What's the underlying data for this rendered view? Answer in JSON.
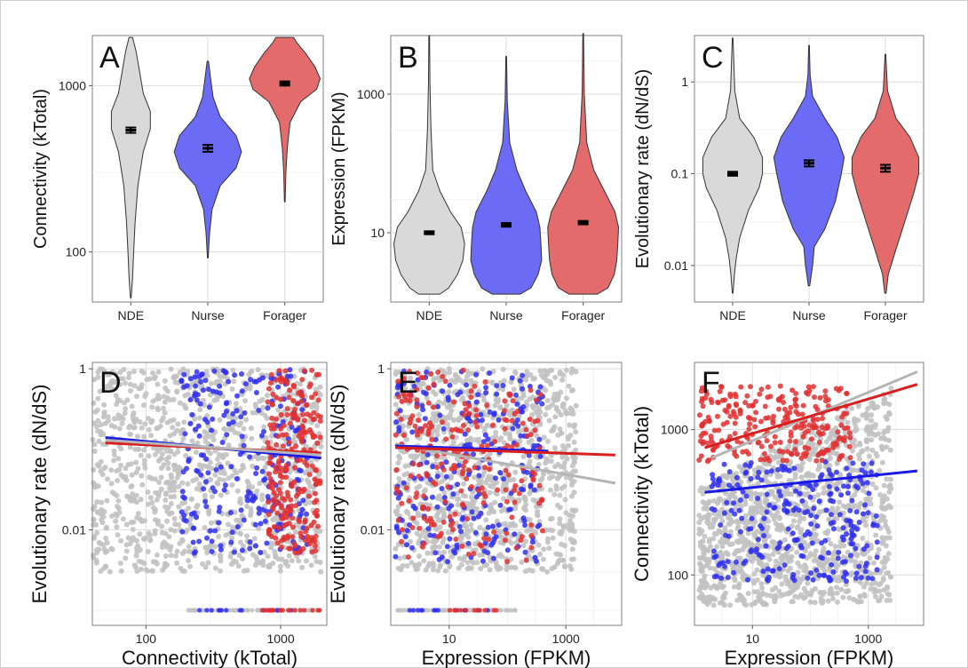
{
  "figure": {
    "border_color": "#cfcfcf"
  },
  "colors": {
    "NDE": "#d9d9d9",
    "Nurse": "#6b6bf5",
    "Forager": "#e36b6b",
    "points_gray": "#c2c2c2",
    "points_blue": "#2f2ff0",
    "points_red": "#e03030",
    "line_gray": "#b5b5b5",
    "line_blue": "#1a1ae6",
    "line_red": "#d81e1e"
  },
  "chart_data": [
    {
      "panel": "A",
      "type": "violin",
      "ylabel": "Connectivity (kTotal)",
      "yscale": "log",
      "ylim": [
        50,
        2000
      ],
      "yticks": [
        100,
        1000
      ],
      "yticklabels": [
        "100",
        "1000"
      ],
      "categories": [
        "NDE",
        "Nurse",
        "Forager"
      ],
      "violins": [
        {
          "name": "NDE",
          "mean": 540,
          "err": 20,
          "min": 53,
          "max": 1950,
          "shape": [
            [
              53,
              0.01
            ],
            [
              70,
              0.05
            ],
            [
              100,
              0.08
            ],
            [
              150,
              0.12
            ],
            [
              250,
              0.2
            ],
            [
              400,
              0.35
            ],
            [
              550,
              0.55
            ],
            [
              700,
              0.55
            ],
            [
              900,
              0.35
            ],
            [
              1200,
              0.25
            ],
            [
              1600,
              0.15
            ],
            [
              1950,
              0.05
            ]
          ]
        },
        {
          "name": "Nurse",
          "mean": 420,
          "err": 20,
          "min": 92,
          "max": 1400,
          "shape": [
            [
              92,
              0.01
            ],
            [
              130,
              0.05
            ],
            [
              180,
              0.12
            ],
            [
              250,
              0.35
            ],
            [
              320,
              0.8
            ],
            [
              400,
              0.95
            ],
            [
              500,
              0.8
            ],
            [
              650,
              0.35
            ],
            [
              850,
              0.15
            ],
            [
              1100,
              0.08
            ],
            [
              1400,
              0.02
            ]
          ]
        },
        {
          "name": "Forager",
          "mean": 1030,
          "err": 30,
          "min": 200,
          "max": 1950,
          "shape": [
            [
              200,
              0.01
            ],
            [
              300,
              0.03
            ],
            [
              420,
              0.07
            ],
            [
              600,
              0.15
            ],
            [
              800,
              0.45
            ],
            [
              950,
              0.9
            ],
            [
              1100,
              1.0
            ],
            [
              1300,
              0.85
            ],
            [
              1550,
              0.6
            ],
            [
              1800,
              0.35
            ],
            [
              1950,
              0.25
            ]
          ]
        }
      ]
    },
    {
      "panel": "B",
      "type": "violin",
      "ylabel": "Expression (FPKM)",
      "yscale": "log",
      "ylim": [
        1,
        7000
      ],
      "yticks": [
        10,
        1000
      ],
      "yticklabels": [
        "10",
        "1000"
      ],
      "categories": [
        "NDE",
        "Nurse",
        "Forager"
      ],
      "violins": [
        {
          "name": "NDE",
          "mean": 10,
          "err": 0.5,
          "min": 1.3,
          "max": 7000,
          "shape": [
            [
              1.3,
              0.3
            ],
            [
              1.6,
              0.55
            ],
            [
              2.5,
              0.8
            ],
            [
              4,
              0.95
            ],
            [
              7,
              1.0
            ],
            [
              12,
              0.9
            ],
            [
              20,
              0.6
            ],
            [
              40,
              0.3
            ],
            [
              80,
              0.1
            ],
            [
              300,
              0.05
            ],
            [
              1500,
              0.02
            ],
            [
              7000,
              0.01
            ]
          ]
        },
        {
          "name": "Nurse",
          "mean": 13,
          "err": 0.8,
          "min": 1.3,
          "max": 3500,
          "shape": [
            [
              1.3,
              0.4
            ],
            [
              1.6,
              0.7
            ],
            [
              2.5,
              0.9
            ],
            [
              4,
              1.0
            ],
            [
              7,
              0.98
            ],
            [
              12,
              0.95
            ],
            [
              20,
              0.85
            ],
            [
              40,
              0.55
            ],
            [
              80,
              0.3
            ],
            [
              200,
              0.1
            ],
            [
              800,
              0.03
            ],
            [
              3500,
              0.01
            ]
          ]
        },
        {
          "name": "Forager",
          "mean": 14,
          "err": 0.8,
          "min": 1.3,
          "max": 7500,
          "shape": [
            [
              1.3,
              0.4
            ],
            [
              1.6,
              0.7
            ],
            [
              2.5,
              0.88
            ],
            [
              4,
              0.95
            ],
            [
              7,
              0.98
            ],
            [
              12,
              1.0
            ],
            [
              20,
              0.9
            ],
            [
              40,
              0.6
            ],
            [
              80,
              0.3
            ],
            [
              200,
              0.1
            ],
            [
              1000,
              0.03
            ],
            [
              7500,
              0.01
            ]
          ]
        }
      ]
    },
    {
      "panel": "C",
      "type": "violin",
      "ylabel": "Evolutionary rate (dN/dS)",
      "yscale": "log",
      "ylim": [
        0.004,
        3.2
      ],
      "yticks": [
        0.01,
        0.1,
        1
      ],
      "yticklabels": [
        "0.01",
        "0.1",
        "1"
      ],
      "categories": [
        "NDE",
        "Nurse",
        "Forager"
      ],
      "violins": [
        {
          "name": "NDE",
          "mean": 0.1,
          "err": 0.005,
          "min": 0.005,
          "max": 3,
          "shape": [
            [
              0.005,
              0.01
            ],
            [
              0.008,
              0.05
            ],
            [
              0.012,
              0.1
            ],
            [
              0.02,
              0.2
            ],
            [
              0.04,
              0.45
            ],
            [
              0.07,
              0.75
            ],
            [
              0.1,
              0.85
            ],
            [
              0.15,
              0.85
            ],
            [
              0.25,
              0.6
            ],
            [
              0.4,
              0.2
            ],
            [
              0.8,
              0.06
            ],
            [
              3,
              0.01
            ]
          ]
        },
        {
          "name": "Nurse",
          "mean": 0.13,
          "err": 0.01,
          "min": 0.006,
          "max": 2.5,
          "shape": [
            [
              0.006,
              0.02
            ],
            [
              0.01,
              0.1
            ],
            [
              0.016,
              0.15
            ],
            [
              0.025,
              0.45
            ],
            [
              0.05,
              0.75
            ],
            [
              0.1,
              0.92
            ],
            [
              0.15,
              1.0
            ],
            [
              0.25,
              0.8
            ],
            [
              0.4,
              0.45
            ],
            [
              0.7,
              0.1
            ],
            [
              1.2,
              0.03
            ],
            [
              2.5,
              0.01
            ]
          ]
        },
        {
          "name": "Forager",
          "mean": 0.115,
          "err": 0.01,
          "min": 0.005,
          "max": 2,
          "shape": [
            [
              0.005,
              0.02
            ],
            [
              0.008,
              0.08
            ],
            [
              0.015,
              0.3
            ],
            [
              0.03,
              0.55
            ],
            [
              0.06,
              0.8
            ],
            [
              0.1,
              0.95
            ],
            [
              0.15,
              0.95
            ],
            [
              0.25,
              0.7
            ],
            [
              0.4,
              0.3
            ],
            [
              0.8,
              0.06
            ],
            [
              2,
              0.01
            ]
          ]
        }
      ]
    },
    {
      "panel": "D",
      "type": "scatter",
      "xlabel": "Connectivity (kTotal)",
      "ylabel": "Evolutionary rate (dN/dS)",
      "xscale": "log",
      "yscale": "log",
      "xlim": [
        40,
        2200
      ],
      "ylim": [
        0.00065,
        1.2
      ],
      "xticks": [
        100,
        1000
      ],
      "xticklabels": [
        "100",
        "1000"
      ],
      "yticks": [
        0.01,
        1
      ],
      "yticklabels": [
        "0.01",
        "1"
      ],
      "floor_y": 0.001,
      "clouds": {
        "gray": {
          "n": 1100,
          "x": [
            40,
            2000
          ],
          "y": [
            0.003,
            1.0
          ],
          "floor_n": 70,
          "floor_x": [
            180,
            2000
          ]
        },
        "blue": {
          "n": 240,
          "x": [
            180,
            1600
          ],
          "y": [
            0.005,
            1.0
          ],
          "floor_n": 14,
          "floor_x": [
            190,
            1300
          ]
        },
        "red": {
          "n": 250,
          "x": [
            800,
            2000
          ],
          "y": [
            0.005,
            1.0
          ],
          "floor_n": 20,
          "floor_x": [
            700,
            2000
          ]
        }
      },
      "fits": [
        {
          "name": "blue",
          "x": [
            50,
            2000
          ],
          "y": [
            0.14,
            0.078
          ]
        },
        {
          "name": "red",
          "x": [
            50,
            2000
          ],
          "y": [
            0.12,
            0.09
          ]
        },
        {
          "name": "gray",
          "x": [
            50,
            2000
          ],
          "y": [
            0.13,
            0.085
          ]
        }
      ]
    },
    {
      "panel": "E",
      "type": "scatter",
      "xlabel": "Expression (FPKM)",
      "ylabel": "Evolutionary rate (dN/dS)",
      "xscale": "log",
      "yscale": "log",
      "xlim": [
        1.0,
        9000
      ],
      "ylim": [
        0.00065,
        1.2
      ],
      "xticks": [
        10,
        1000
      ],
      "xticklabels": [
        "10",
        "1000"
      ],
      "yticks": [
        0.01,
        1
      ],
      "yticklabels": [
        "0.01",
        "1"
      ],
      "floor_y": 0.001,
      "clouds": {
        "gray": {
          "n": 1100,
          "x": [
            1.2,
            1500
          ],
          "y": [
            0.003,
            1.0
          ],
          "floor_n": 70,
          "floor_x": [
            1.2,
            150
          ]
        },
        "blue": {
          "n": 240,
          "x": [
            1.2,
            400
          ],
          "y": [
            0.004,
            1.0
          ],
          "floor_n": 14,
          "floor_x": [
            2,
            60
          ]
        },
        "red": {
          "n": 230,
          "x": [
            1.2,
            400
          ],
          "y": [
            0.004,
            1.0
          ],
          "floor_n": 12,
          "floor_x": [
            10,
            120
          ]
        }
      },
      "fits": [
        {
          "name": "gray",
          "x": [
            1.2,
            7000
          ],
          "y": [
            0.115,
            0.038
          ]
        },
        {
          "name": "blue",
          "x": [
            1.2,
            500
          ],
          "y": [
            0.11,
            0.095
          ]
        },
        {
          "name": "red",
          "x": [
            1.2,
            7000
          ],
          "y": [
            0.105,
            0.085
          ]
        }
      ]
    },
    {
      "panel": "F",
      "type": "scatter",
      "xlabel": "Expression (FPKM)",
      "ylabel": "Connectivity (kTotal)",
      "xscale": "log",
      "yscale": "log",
      "xlim": [
        1.0,
        9000
      ],
      "ylim": [
        45,
        2900
      ],
      "xticks": [
        10,
        1000
      ],
      "xticklabels": [
        "10",
        "1000"
      ],
      "yticks": [
        100,
        1000
      ],
      "yticklabels": [
        "100",
        "1000"
      ],
      "clouds": {
        "gray": {
          "n": 1300,
          "x": [
            1.2,
            2500
          ],
          "y": [
            55,
            2000
          ],
          "floor_n": 0,
          "floor_x": [
            1,
            1
          ]
        },
        "blue": {
          "n": 260,
          "x": [
            2,
            1500
          ],
          "y": [
            90,
            600
          ],
          "floor_n": 0,
          "floor_x": [
            1,
            1
          ]
        },
        "red": {
          "n": 260,
          "x": [
            1.2,
            500
          ],
          "y": [
            600,
            2000
          ],
          "floor_n": 0,
          "floor_x": [
            1,
            1
          ]
        }
      },
      "fits": [
        {
          "name": "gray",
          "x": [
            2,
            7000
          ],
          "y": [
            640,
            2500
          ]
        },
        {
          "name": "red",
          "x": [
            1.5,
            7000
          ],
          "y": [
            750,
            2050
          ]
        },
        {
          "name": "blue",
          "x": [
            1.5,
            7000
          ],
          "y": [
            370,
            520
          ]
        }
      ]
    }
  ]
}
